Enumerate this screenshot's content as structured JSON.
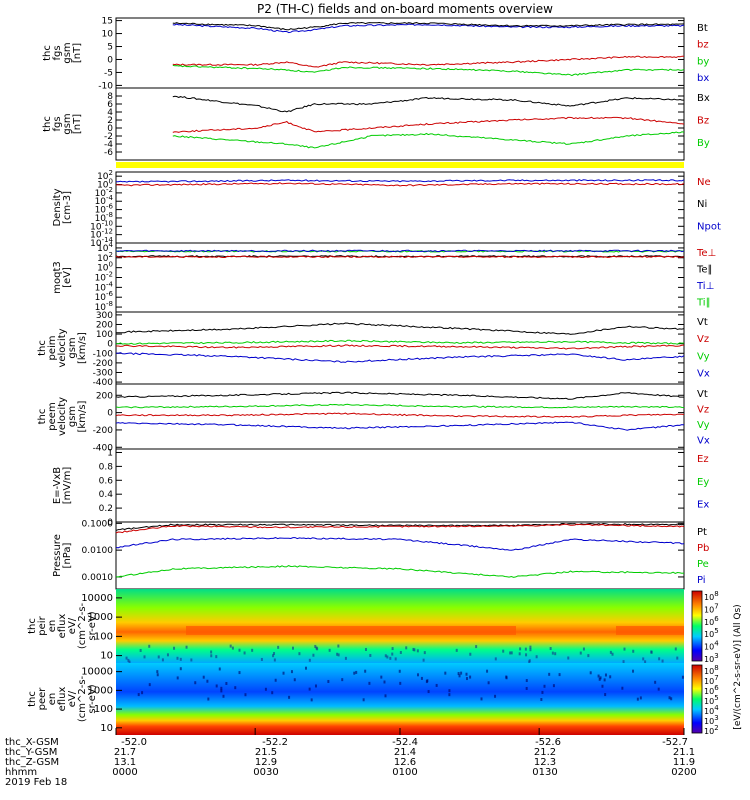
{
  "title": "P2 (TH-C) fields and on-board moments overview",
  "chart_data": [
    {
      "id": "p1",
      "type": "line",
      "ylabel": [
        "thc",
        "fgs",
        "gsm",
        "[nT]"
      ],
      "yticks": [
        15,
        10,
        5,
        0,
        -5,
        -10
      ],
      "ylim": [
        -11,
        16
      ],
      "legend": [
        {
          "name": "Bt",
          "color": "#000000"
        },
        {
          "name": "bz",
          "color": "#cc0000"
        },
        {
          "name": "by",
          "color": "#00cc00"
        },
        {
          "name": "bx",
          "color": "#0000cc"
        }
      ],
      "series": [
        {
          "name": "bx",
          "color": "#0000cc",
          "x": [
            0.1,
            0.25,
            0.3,
            0.35,
            0.4,
            0.55,
            0.7,
            0.8,
            0.9,
            1.0
          ],
          "y": [
            13.5,
            12,
            10.5,
            11.5,
            13,
            13.5,
            12.5,
            12.5,
            13,
            13
          ]
        },
        {
          "name": "Bt",
          "color": "#000000",
          "x": [
            0.1,
            0.25,
            0.3,
            0.35,
            0.4,
            0.55,
            0.7,
            0.8,
            0.9,
            1.0
          ],
          "y": [
            14,
            13,
            11.5,
            12.5,
            14,
            14,
            13,
            13,
            13.5,
            13.5
          ]
        },
        {
          "name": "bz",
          "color": "#cc0000",
          "x": [
            0.1,
            0.25,
            0.3,
            0.35,
            0.4,
            0.55,
            0.7,
            0.8,
            0.9,
            1.0
          ],
          "y": [
            -2,
            -2,
            -1,
            -3,
            -1,
            -2,
            -1,
            0,
            1,
            1
          ]
        },
        {
          "name": "by",
          "color": "#00cc00",
          "x": [
            0.1,
            0.25,
            0.3,
            0.35,
            0.4,
            0.55,
            0.7,
            0.8,
            0.9,
            1.0
          ],
          "y": [
            -2.5,
            -3.5,
            -4,
            -5,
            -3,
            -3.5,
            -4.5,
            -6,
            -4,
            -4
          ]
        }
      ]
    },
    {
      "id": "p2",
      "type": "line",
      "ylabel": [
        "thc",
        "fgs",
        "gsm",
        "[nT]"
      ],
      "yticks": [
        8,
        6,
        4,
        2,
        0,
        -2,
        -4,
        -6
      ],
      "ylim": [
        -8,
        10
      ],
      "legend": [
        {
          "name": "Bx",
          "color": "#000000"
        },
        {
          "name": "Bz",
          "color": "#cc0000"
        },
        {
          "name": "By",
          "color": "#00cc00"
        }
      ],
      "series": [
        {
          "name": "Bx",
          "color": "#000000",
          "x": [
            0.1,
            0.25,
            0.3,
            0.35,
            0.45,
            0.55,
            0.7,
            0.8,
            0.9,
            1.0
          ],
          "y": [
            8,
            5.5,
            4,
            6,
            6,
            7.5,
            7,
            5.5,
            7.5,
            7
          ]
        },
        {
          "name": "Bz",
          "color": "#cc0000",
          "x": [
            0.1,
            0.25,
            0.3,
            0.35,
            0.45,
            0.55,
            0.7,
            0.8,
            0.9,
            1.0
          ],
          "y": [
            -1,
            0,
            1.5,
            -1,
            0,
            1,
            2,
            2.5,
            2.5,
            1
          ]
        },
        {
          "name": "By",
          "color": "#00cc00",
          "x": [
            0.1,
            0.25,
            0.3,
            0.35,
            0.45,
            0.55,
            0.7,
            0.8,
            0.9,
            1.0
          ],
          "y": [
            -2,
            -3.5,
            -4,
            -5,
            -2,
            -1.5,
            -3,
            -4,
            -2,
            -1
          ]
        }
      ]
    },
    {
      "id": "p4",
      "type": "line",
      "scale": "log",
      "ylabel": [
        "Density",
        "[cm-3]"
      ],
      "yticks": [
        "10^2",
        "10^0",
        "10^-2",
        "10^-4",
        "10^-6",
        "10^-8",
        "10^-10",
        "10^-12",
        "10^-14"
      ],
      "ylim": [
        -14,
        3
      ],
      "legend": [
        {
          "name": "Ne",
          "color": "#cc0000"
        },
        {
          "name": "Ni",
          "color": "#000000"
        },
        {
          "name": "Npot",
          "color": "#0000cc"
        }
      ],
      "series": [
        {
          "name": "Npot",
          "color": "#0000cc",
          "x": [
            0,
            0.3,
            0.5,
            0.7,
            1.0
          ],
          "y": [
            0.6,
            1,
            0.8,
            1,
            1
          ]
        },
        {
          "name": "Ne",
          "color": "#cc0000",
          "x": [
            0,
            0.3,
            0.5,
            0.7,
            1.0
          ],
          "y": [
            -0.2,
            0.3,
            -0.2,
            0.2,
            0.1
          ]
        }
      ]
    },
    {
      "id": "p5",
      "type": "line",
      "scale": "log",
      "ylabel": [
        "moqt3",
        "[eV]"
      ],
      "yticks": [
        "10^4",
        "10^2",
        "10^0",
        "10^-2",
        "10^-4",
        "10^-6",
        "10^-8"
      ],
      "ylim": [
        -9,
        5
      ],
      "legend": [
        {
          "name": "Te⊥",
          "color": "#cc0000"
        },
        {
          "name": "Te∥",
          "color": "#000000"
        },
        {
          "name": "Ti⊥",
          "color": "#0000cc"
        },
        {
          "name": "Ti∥",
          "color": "#00cc00"
        }
      ],
      "series": [
        {
          "name": "Ti∥",
          "color": "#00cc00",
          "x": [
            0,
            1
          ],
          "y": [
            3.3,
            3.3
          ]
        },
        {
          "name": "Ti⊥",
          "color": "#0000cc",
          "x": [
            0,
            1
          ],
          "y": [
            3.4,
            3.4
          ]
        },
        {
          "name": "Te∥",
          "color": "#000000",
          "x": [
            0,
            1
          ],
          "y": [
            2.3,
            2.3
          ]
        },
        {
          "name": "Te⊥",
          "color": "#cc0000",
          "x": [
            0,
            1
          ],
          "y": [
            2.2,
            2.2
          ]
        }
      ]
    },
    {
      "id": "p6",
      "type": "line",
      "ylabel": [
        "thc",
        "peim",
        "velocity",
        "gsm",
        "[km/s]"
      ],
      "yticks": [
        300,
        200,
        100,
        0,
        -100,
        -200,
        -300,
        -400
      ],
      "ylim": [
        -420,
        330
      ],
      "legend": [
        {
          "name": "Vt",
          "color": "#000000"
        },
        {
          "name": "Vz",
          "color": "#cc0000"
        },
        {
          "name": "Vy",
          "color": "#00cc00"
        },
        {
          "name": "Vx",
          "color": "#0000cc"
        }
      ],
      "series": [
        {
          "name": "Vt",
          "color": "#000000",
          "x": [
            0,
            0.2,
            0.4,
            0.6,
            0.8,
            0.9,
            1.0
          ],
          "y": [
            120,
            150,
            210,
            160,
            100,
            180,
            150
          ]
        },
        {
          "name": "Vz",
          "color": "#cc0000",
          "x": [
            0,
            0.2,
            0.4,
            0.6,
            0.8,
            0.9,
            1.0
          ],
          "y": [
            -20,
            -40,
            -20,
            -30,
            -50,
            -30,
            -20
          ]
        },
        {
          "name": "Vy",
          "color": "#00cc00",
          "x": [
            0,
            0.2,
            0.4,
            0.6,
            0.8,
            0.9,
            1.0
          ],
          "y": [
            0,
            10,
            30,
            10,
            20,
            10,
            0
          ]
        },
        {
          "name": "Vx",
          "color": "#0000cc",
          "x": [
            0,
            0.2,
            0.4,
            0.6,
            0.8,
            0.9,
            1.0
          ],
          "y": [
            -100,
            -130,
            -190,
            -140,
            -110,
            -170,
            -130
          ]
        }
      ]
    },
    {
      "id": "p7",
      "type": "line",
      "ylabel": [
        "thc",
        "peem",
        "velocity",
        "gsm",
        "[km/s]"
      ],
      "yticks": [
        200,
        0,
        -200,
        -400
      ],
      "ylim": [
        -420,
        330
      ],
      "legend": [
        {
          "name": "Vt",
          "color": "#000000"
        },
        {
          "name": "Vz",
          "color": "#cc0000"
        },
        {
          "name": "Vy",
          "color": "#00cc00"
        },
        {
          "name": "Vx",
          "color": "#0000cc"
        }
      ],
      "series": [
        {
          "name": "Vt",
          "color": "#000000",
          "x": [
            0,
            0.2,
            0.4,
            0.6,
            0.8,
            0.9,
            1.0
          ],
          "y": [
            180,
            200,
            230,
            200,
            160,
            230,
            180
          ]
        },
        {
          "name": "Vy",
          "color": "#00cc00",
          "x": [
            0,
            0.2,
            0.4,
            0.6,
            0.8,
            0.9,
            1.0
          ],
          "y": [
            60,
            70,
            90,
            70,
            60,
            70,
            60
          ]
        },
        {
          "name": "Vz",
          "color": "#cc0000",
          "x": [
            0,
            0.2,
            0.4,
            0.6,
            0.8,
            0.9,
            1.0
          ],
          "y": [
            -30,
            -30,
            -10,
            -40,
            -50,
            -30,
            -20
          ]
        },
        {
          "name": "Vx",
          "color": "#0000cc",
          "x": [
            0,
            0.2,
            0.4,
            0.6,
            0.8,
            0.9,
            1.0
          ],
          "y": [
            -120,
            -140,
            -180,
            -150,
            -110,
            -200,
            -140
          ]
        }
      ]
    },
    {
      "id": "p8",
      "type": "line",
      "ylabel": [
        "E=-VxB",
        "[mV/m]"
      ],
      "yticks": [
        1.0,
        0.8,
        0.6,
        0.4,
        0.2,
        0.0
      ],
      "ylim": [
        0,
        1.05
      ],
      "legend": [
        {
          "name": "Ez",
          "color": "#cc0000"
        },
        {
          "name": "Ey",
          "color": "#00cc00"
        },
        {
          "name": "Ex",
          "color": "#0000cc"
        }
      ],
      "series": []
    },
    {
      "id": "p9",
      "type": "line",
      "scale": "log",
      "ylabel": [
        "Pressure",
        "[nPa]"
      ],
      "yticks": [
        "0.1000",
        "0.0100",
        "0.0010"
      ],
      "ylim": [
        -3.45,
        -0.95
      ],
      "legend": [
        {
          "name": "Pt",
          "color": "#000000"
        },
        {
          "name": "Pb",
          "color": "#cc0000"
        },
        {
          "name": "Pe",
          "color": "#00cc00"
        },
        {
          "name": "Pi",
          "color": "#0000cc"
        }
      ],
      "series": [
        {
          "name": "Pt",
          "color": "#000000",
          "x": [
            0,
            0.1,
            0.3,
            0.5,
            0.7,
            0.8,
            1.0
          ],
          "y": [
            -1.25,
            -1.05,
            -1.05,
            -1.08,
            -1.08,
            -1.02,
            -1.05
          ]
        },
        {
          "name": "Pb",
          "color": "#cc0000",
          "x": [
            0,
            0.1,
            0.3,
            0.5,
            0.7,
            0.8,
            1.0
          ],
          "y": [
            -1.35,
            -1.1,
            -1.15,
            -1.12,
            -1.1,
            -1.05,
            -1.12
          ]
        },
        {
          "name": "Pi",
          "color": "#0000cc",
          "x": [
            0,
            0.1,
            0.3,
            0.5,
            0.7,
            0.8,
            1.0
          ],
          "y": [
            -1.9,
            -1.6,
            -1.55,
            -1.6,
            -2.0,
            -1.6,
            -1.75
          ]
        },
        {
          "name": "Pe",
          "color": "#00cc00",
          "x": [
            0,
            0.1,
            0.3,
            0.5,
            0.7,
            0.8,
            1.0
          ],
          "y": [
            -3.0,
            -2.7,
            -2.6,
            -2.7,
            -3.0,
            -2.8,
            -2.85
          ]
        }
      ]
    },
    {
      "id": "p10",
      "type": "heatmap",
      "ylabel": [
        "thc",
        "peir",
        "en",
        "eflux",
        "eV/",
        "(cm^2-s-",
        "sr-eV)"
      ],
      "yticks": [
        "10000",
        "1000",
        "100",
        "10"
      ],
      "colorbar": {
        "label": "[eV/(cm^2-s-sr-eV)] (All Qs)",
        "ticks": [
          "10^8",
          "10^7",
          "10^6",
          "10^5",
          "10^4",
          "10^3"
        ]
      }
    },
    {
      "id": "p11",
      "type": "heatmap",
      "ylabel": [
        "thc",
        "peer",
        "en",
        "eflux",
        "eV/",
        "(cm^2-s-",
        "sr-eV)"
      ],
      "yticks": [
        "10000",
        "1000",
        "100",
        "10"
      ],
      "colorbar": {
        "label": "[eV/(cm^2-s-sr-eV)] (All Qs)",
        "ticks": [
          "10^8",
          "10^7",
          "10^6",
          "10^5",
          "10^4",
          "10^3",
          "10^2"
        ]
      }
    }
  ],
  "x_axis": {
    "rows": [
      {
        "label": "thc_X-GSM",
        "values": [
          "-52.0",
          "-52.2",
          "-52.4",
          "-52.6",
          "-52.7"
        ]
      },
      {
        "label": "thc_Y-GSM",
        "values": [
          "21.7",
          "21.5",
          "21.4",
          "21.2",
          "21.1"
        ]
      },
      {
        "label": "thc_Z-GSM",
        "values": [
          "13.1",
          "12.9",
          "12.6",
          "12.3",
          "11.9"
        ]
      },
      {
        "label": "hhmm",
        "values": [
          "0000",
          "0030",
          "0100",
          "0130",
          "0200"
        ]
      }
    ],
    "date": "2019 Feb 18"
  },
  "colors": {
    "yellow_band": "#ffff00"
  }
}
